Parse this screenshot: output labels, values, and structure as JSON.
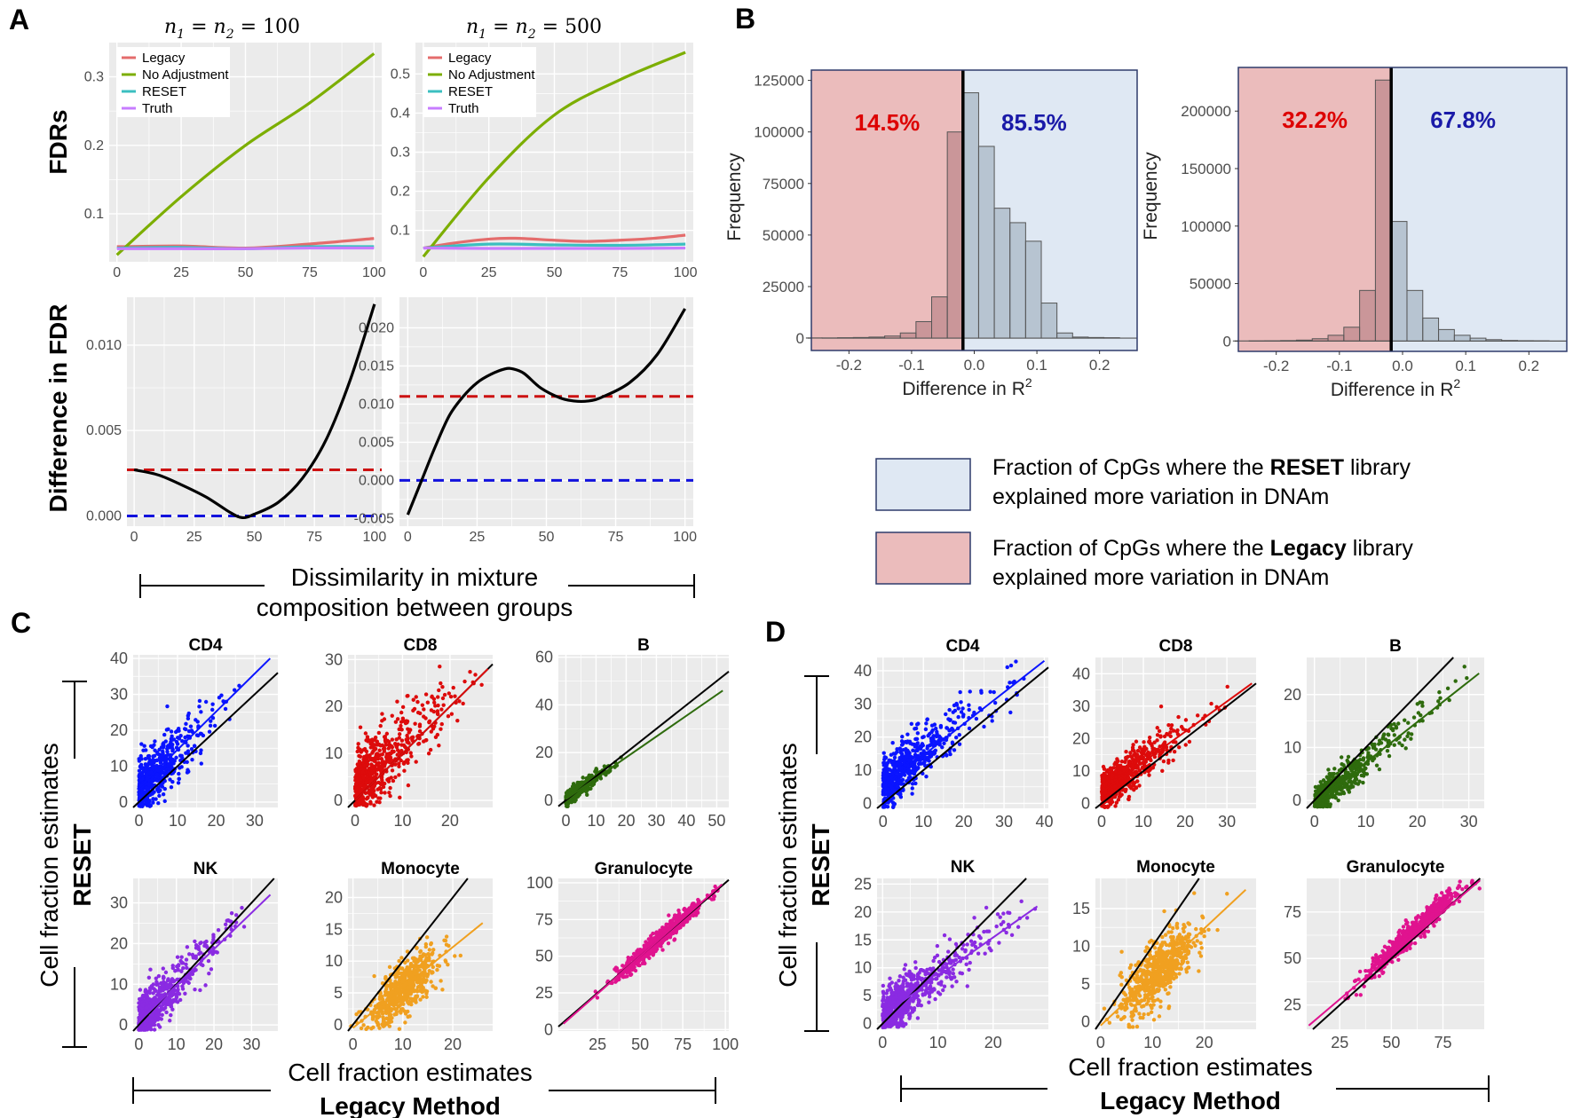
{
  "panel_labels": {
    "A": "A",
    "B": "B",
    "C": "C",
    "D": "D"
  },
  "panelA": {
    "col_titles": [
      "n1 = n2 = 100",
      "n1 = n2 = 500"
    ],
    "col_title_parts": {
      "n": "n",
      "sub1": "1",
      "sub2": "2",
      "eq": "=",
      "v1": "100",
      "v2": "500"
    },
    "row_labels": {
      "top": "FDRs",
      "bottom": "Difference in FDR"
    },
    "xlabel_line1": "Dissimilarity in mixture",
    "xlabel_line2": "composition between groups",
    "legend": [
      "Legacy",
      "No Adjustment",
      "RESET",
      "Truth"
    ]
  },
  "panelB": {
    "ylabel": "Frequency",
    "xlabel": "Difference in",
    "xlabel_sym": "R",
    "xlabel_sup": "2",
    "key": [
      {
        "pre": "Fraction of CpGs where the ",
        "bold": "RESET",
        "post": " library",
        "line2": "explained more variation in DNAm"
      },
      {
        "pre": "Fraction of CpGs where the ",
        "bold": "Legacy",
        "post": " library",
        "line2": "explained more variation in DNAm"
      }
    ]
  },
  "panelCD": {
    "ylabel_line1": "Cell fraction estimates",
    "ylabel_line2": "RESET",
    "xlabel_line1": "Cell fraction estimates",
    "xlabel_line2": "Legacy Method"
  },
  "colors": {
    "legacy": "#e46c6c",
    "noadj": "#7cae00",
    "reset": "#3bbfc0",
    "truth": "#c77cff",
    "CD4": "#0a14ff",
    "CD8": "#dd0b0b",
    "B": "#2e6b0d",
    "NK": "#8a2be2",
    "Monocyte": "#f0a020",
    "Granulocyte": "#e0138f",
    "ref_red": "#cc1111",
    "ref_blue": "#1111dd",
    "pct_red": "#dd0000",
    "pct_blue": "#1a1aa8"
  },
  "chart_data": [
    {
      "type": "line",
      "id": "A_top_left",
      "title": "n1 = n2 = 100",
      "ylabel": "FDRs",
      "xlim": [
        -3,
        103
      ],
      "ylim": [
        0.03,
        0.35
      ],
      "xticks": [
        0,
        25,
        50,
        75,
        100
      ],
      "yticks": [
        0.1,
        0.2,
        0.3
      ],
      "ytick_labels": [
        "0.1",
        "0.2",
        "0.3"
      ],
      "series": [
        {
          "name": "Legacy",
          "x": [
            0,
            25,
            50,
            75,
            100
          ],
          "y": [
            0.052,
            0.053,
            0.05,
            0.056,
            0.064
          ]
        },
        {
          "name": "No Adjustment",
          "x": [
            0,
            25,
            50,
            75,
            100
          ],
          "y": [
            0.04,
            0.125,
            0.2,
            0.262,
            0.334
          ]
        },
        {
          "name": "RESET",
          "x": [
            0,
            25,
            50,
            75,
            100
          ],
          "y": [
            0.05,
            0.051,
            0.049,
            0.052,
            0.052
          ]
        },
        {
          "name": "Truth",
          "x": [
            0,
            25,
            50,
            75,
            100
          ],
          "y": [
            0.049,
            0.049,
            0.049,
            0.05,
            0.05
          ]
        }
      ]
    },
    {
      "type": "line",
      "id": "A_top_right",
      "title": "n1 = n2 = 500",
      "xlim": [
        -3,
        103
      ],
      "ylim": [
        0.02,
        0.58
      ],
      "xticks": [
        0,
        25,
        50,
        75,
        100
      ],
      "yticks": [
        0.1,
        0.2,
        0.3,
        0.4,
        0.5
      ],
      "ytick_labels": [
        "0.1",
        "0.2",
        "0.3",
        "0.4",
        "0.5"
      ],
      "series": [
        {
          "name": "Legacy",
          "x": [
            0,
            12,
            25,
            35,
            50,
            62,
            75,
            88,
            100
          ],
          "y": [
            0.055,
            0.068,
            0.078,
            0.08,
            0.075,
            0.072,
            0.075,
            0.08,
            0.088
          ]
        },
        {
          "name": "No Adjustment",
          "x": [
            0,
            25,
            50,
            75,
            100
          ],
          "y": [
            0.033,
            0.235,
            0.395,
            0.485,
            0.555
          ]
        },
        {
          "name": "RESET",
          "x": [
            0,
            25,
            50,
            75,
            100
          ],
          "y": [
            0.055,
            0.065,
            0.063,
            0.062,
            0.065
          ]
        },
        {
          "name": "Truth",
          "x": [
            0,
            25,
            50,
            75,
            100
          ],
          "y": [
            0.055,
            0.054,
            0.054,
            0.054,
            0.055
          ]
        }
      ]
    },
    {
      "type": "line",
      "id": "A_bottom_left",
      "ylabel": "Difference in FDR",
      "xlim": [
        -3,
        103
      ],
      "ylim": [
        -0.0006,
        0.0128
      ],
      "xticks": [
        0,
        25,
        50,
        75,
        100
      ],
      "yticks": [
        0,
        0.005,
        0.01
      ],
      "ytick_labels": [
        "0.000",
        "0.005",
        "0.010"
      ],
      "hlines": [
        {
          "y": 0.0027,
          "color": "ref_red"
        },
        {
          "y": 0.0,
          "color": "ref_blue"
        }
      ],
      "series": [
        {
          "name": "Difference",
          "x": [
            0,
            10,
            20,
            30,
            40,
            45,
            50,
            60,
            70,
            80,
            90,
            100
          ],
          "y": [
            0.0027,
            0.0024,
            0.0018,
            0.0011,
            0.0002,
            -0.0001,
            0.0001,
            0.0008,
            0.0022,
            0.0045,
            0.008,
            0.0124
          ]
        }
      ]
    },
    {
      "type": "line",
      "id": "A_bottom_right",
      "xlim": [
        -3,
        103
      ],
      "ylim": [
        -0.006,
        0.024
      ],
      "xticks": [
        0,
        25,
        50,
        75,
        100
      ],
      "yticks": [
        -0.005,
        0,
        0.005,
        0.01,
        0.015,
        0.02
      ],
      "ytick_labels": [
        "-0.005",
        "0.000",
        "0.005",
        "0.010",
        "0.015",
        "0.020"
      ],
      "hlines": [
        {
          "y": 0.011,
          "color": "ref_red"
        },
        {
          "y": 0.0,
          "color": "ref_blue"
        }
      ],
      "series": [
        {
          "name": "Difference",
          "x": [
            0,
            5,
            10,
            15,
            20,
            25,
            30,
            35,
            38,
            42,
            48,
            55,
            60,
            65,
            70,
            80,
            90,
            100
          ],
          "y": [
            -0.0045,
            0.0,
            0.0045,
            0.0085,
            0.011,
            0.0128,
            0.0139,
            0.0146,
            0.0146,
            0.014,
            0.0121,
            0.0108,
            0.0104,
            0.0104,
            0.0109,
            0.0128,
            0.0165,
            0.0225
          ]
        }
      ]
    },
    {
      "type": "histogram",
      "id": "B_left",
      "xlabel": "Difference in R2",
      "ylabel": "Frequency",
      "xlim": [
        -0.26,
        0.26
      ],
      "ylim": [
        -6000,
        130000
      ],
      "xticks": [
        -0.2,
        -0.1,
        0,
        0.1,
        0.2
      ],
      "xtick_labels": [
        "-0.2",
        "-0.1",
        "0.0",
        "0.1",
        "0.2"
      ],
      "yticks": [
        0,
        25000,
        50000,
        75000,
        100000,
        125000
      ],
      "ytick_labels": [
        "0",
        "25000",
        "50000",
        "75000",
        "100000",
        "125000"
      ],
      "split": -0.018,
      "left_pct": "14.5%",
      "right_pct": "85.5%",
      "bin_width": 0.025,
      "bins_left": [
        -0.243,
        -0.218,
        -0.193,
        -0.168,
        -0.143,
        -0.118,
        -0.093,
        -0.068,
        -0.043
      ],
      "counts": [
        100,
        100,
        200,
        300,
        500,
        1000,
        2500,
        8000,
        20000,
        100000,
        119000,
        93000,
        63000,
        56000,
        47000,
        17000,
        2500,
        500,
        300,
        200
      ]
    },
    {
      "type": "histogram",
      "id": "B_right",
      "xlabel": "Difference in R2",
      "ylabel": "Frequency",
      "xlim": [
        -0.26,
        0.26
      ],
      "ylim": [
        -9000,
        238000
      ],
      "xticks": [
        -0.2,
        -0.1,
        0,
        0.1,
        0.2
      ],
      "xtick_labels": [
        "-0.2",
        "-0.1",
        "0.0",
        "0.1",
        "0.2"
      ],
      "yticks": [
        0,
        50000,
        100000,
        150000,
        200000
      ],
      "ytick_labels": [
        "0",
        "50000",
        "100000",
        "150000",
        "200000"
      ],
      "split": -0.018,
      "left_pct": "32.2%",
      "right_pct": "67.8%",
      "bin_width": 0.025,
      "counts": [
        100,
        100,
        200,
        400,
        800,
        2000,
        5000,
        12000,
        44000,
        227000,
        104000,
        44000,
        20000,
        10000,
        5000,
        2500,
        1200,
        500,
        300,
        200
      ]
    },
    {
      "type": "scatter",
      "id": "C",
      "panels": [
        {
          "title": "CD4",
          "color": "CD4",
          "lim": [
            -1.5,
            36
          ],
          "ylim": [
            -1.5,
            41
          ],
          "xticks": [
            0,
            10,
            20,
            30
          ],
          "yticks": [
            0,
            10,
            20,
            30,
            40
          ],
          "fit": [
            0,
            4,
            34,
            40
          ],
          "n": 520,
          "xmax": 28,
          "slope": 1.08,
          "icpt": 3.5,
          "sd": 4,
          "xd": "exp"
        },
        {
          "title": "CD8",
          "color": "CD8",
          "lim": [
            -1.5,
            29
          ],
          "ylim": [
            -1.5,
            31
          ],
          "xticks": [
            0,
            10,
            20
          ],
          "yticks": [
            0,
            10,
            20,
            30
          ],
          "fit": [
            0,
            0,
            28,
            28
          ],
          "n": 620,
          "xmax": 28,
          "slope": 0.95,
          "icpt": 2.5,
          "sd": 3.8,
          "xd": "exp"
        },
        {
          "title": "B",
          "color": "B",
          "lim": [
            -2.5,
            54
          ],
          "ylim": [
            -3,
            61
          ],
          "xticks": [
            0,
            10,
            20,
            30,
            40,
            50
          ],
          "yticks": [
            0,
            20,
            40,
            60
          ],
          "fit": [
            0,
            0.5,
            52,
            46
          ],
          "n": 400,
          "xmax": 20,
          "slope": 0.9,
          "icpt": 0.5,
          "sd": 1.5,
          "xd": "exp"
        },
        {
          "title": "NK",
          "color": "NK",
          "lim": [
            -1.5,
            37
          ],
          "ylim": [
            -1.5,
            36
          ],
          "xticks": [
            0,
            10,
            20,
            30
          ],
          "yticks": [
            0,
            10,
            20,
            30
          ],
          "fit": [
            0,
            0.8,
            35,
            32
          ],
          "n": 600,
          "xmax": 30,
          "slope": 0.9,
          "icpt": 0.8,
          "sd": 3,
          "xd": "exp"
        },
        {
          "title": "Monocyte",
          "color": "Monocyte",
          "lim": [
            -1,
            28
          ],
          "ylim": [
            -1,
            23
          ],
          "xticks": [
            0,
            10,
            20
          ],
          "yticks": [
            0,
            5,
            10,
            15,
            20
          ],
          "fit": [
            0,
            -0.5,
            26,
            16
          ],
          "n": 600,
          "xmax": 24,
          "slope": 0.62,
          "icpt": -0.5,
          "sd": 2,
          "xd": "norm",
          "xmu": 10,
          "xsd": 3.5
        },
        {
          "title": "Granulocyte",
          "color": "Granulocyte",
          "lim": [
            2,
            102
          ],
          "ylim": [
            -1,
            103
          ],
          "xticks": [
            25,
            50,
            75,
            100
          ],
          "yticks": [
            0,
            25,
            50,
            75,
            100
          ],
          "fit": [
            5,
            4,
            98,
            99
          ],
          "n": 600,
          "xmax": 98,
          "slope": 1.02,
          "icpt": -1,
          "sd": 3,
          "xd": "norm",
          "xmu": 62,
          "xsd": 13
        }
      ]
    },
    {
      "type": "scatter",
      "id": "D",
      "panels": [
        {
          "title": "CD4",
          "color": "CD4",
          "lim": [
            -1.5,
            41
          ],
          "ylim": [
            -1.5,
            44
          ],
          "xticks": [
            0,
            10,
            20,
            30,
            40
          ],
          "yticks": [
            0,
            10,
            20,
            30,
            40
          ],
          "fit": [
            0,
            5,
            40,
            43
          ],
          "n": 600,
          "xmax": 35,
          "slope": 1.0,
          "icpt": 5,
          "sd": 4,
          "xd": "exp"
        },
        {
          "title": "CD8",
          "color": "CD8",
          "lim": [
            -1.5,
            37
          ],
          "ylim": [
            -1.5,
            45
          ],
          "xticks": [
            0,
            10,
            20,
            30
          ],
          "yticks": [
            0,
            10,
            20,
            30,
            40
          ],
          "fit": [
            0,
            3.5,
            36,
            37
          ],
          "n": 650,
          "xmax": 32,
          "slope": 0.95,
          "icpt": 3.5,
          "sd": 3,
          "xd": "exp"
        },
        {
          "title": "B",
          "color": "B",
          "lim": [
            -1.5,
            33
          ],
          "ylim": [
            -1.5,
            27
          ],
          "xticks": [
            0,
            10,
            20,
            30
          ],
          "yticks": [
            0,
            10,
            20
          ],
          "fit": [
            0,
            -0.5,
            32,
            24
          ],
          "n": 550,
          "xmax": 30,
          "slope": 0.78,
          "icpt": -0.5,
          "sd": 1.5,
          "xd": "exp"
        },
        {
          "title": "NK",
          "color": "NK",
          "lim": [
            -1,
            30
          ],
          "ylim": [
            -1,
            26
          ],
          "xticks": [
            0,
            10,
            20
          ],
          "yticks": [
            0,
            5,
            10,
            15,
            20,
            25
          ],
          "fit": [
            0,
            1.5,
            28,
            21
          ],
          "n": 650,
          "xmax": 28,
          "slope": 0.72,
          "icpt": 1.5,
          "sd": 2.2,
          "xd": "exp"
        },
        {
          "title": "Monocyte",
          "color": "Monocyte",
          "lim": [
            -1,
            30
          ],
          "ylim": [
            -1,
            19
          ],
          "xticks": [
            0,
            10,
            20
          ],
          "yticks": [
            0,
            5,
            10,
            15
          ],
          "fit": [
            0,
            -0.5,
            28,
            17.5
          ],
          "n": 650,
          "xmax": 26,
          "slope": 0.65,
          "icpt": -0.5,
          "sd": 2,
          "xd": "norm",
          "xmu": 11,
          "xsd": 3.5
        },
        {
          "title": "Granulocyte",
          "color": "Granulocyte",
          "lim": [
            9,
            95
          ],
          "ylim": [
            12,
            93
          ],
          "xticks": [
            25,
            50,
            75
          ],
          "yticks": [
            25,
            50,
            75
          ],
          "fit": [
            10,
            14,
            93,
            92
          ],
          "n": 650,
          "xmax": 92,
          "slope": 1.01,
          "icpt": 3,
          "sd": 3,
          "xd": "norm",
          "xmu": 62,
          "xsd": 12
        }
      ]
    }
  ]
}
